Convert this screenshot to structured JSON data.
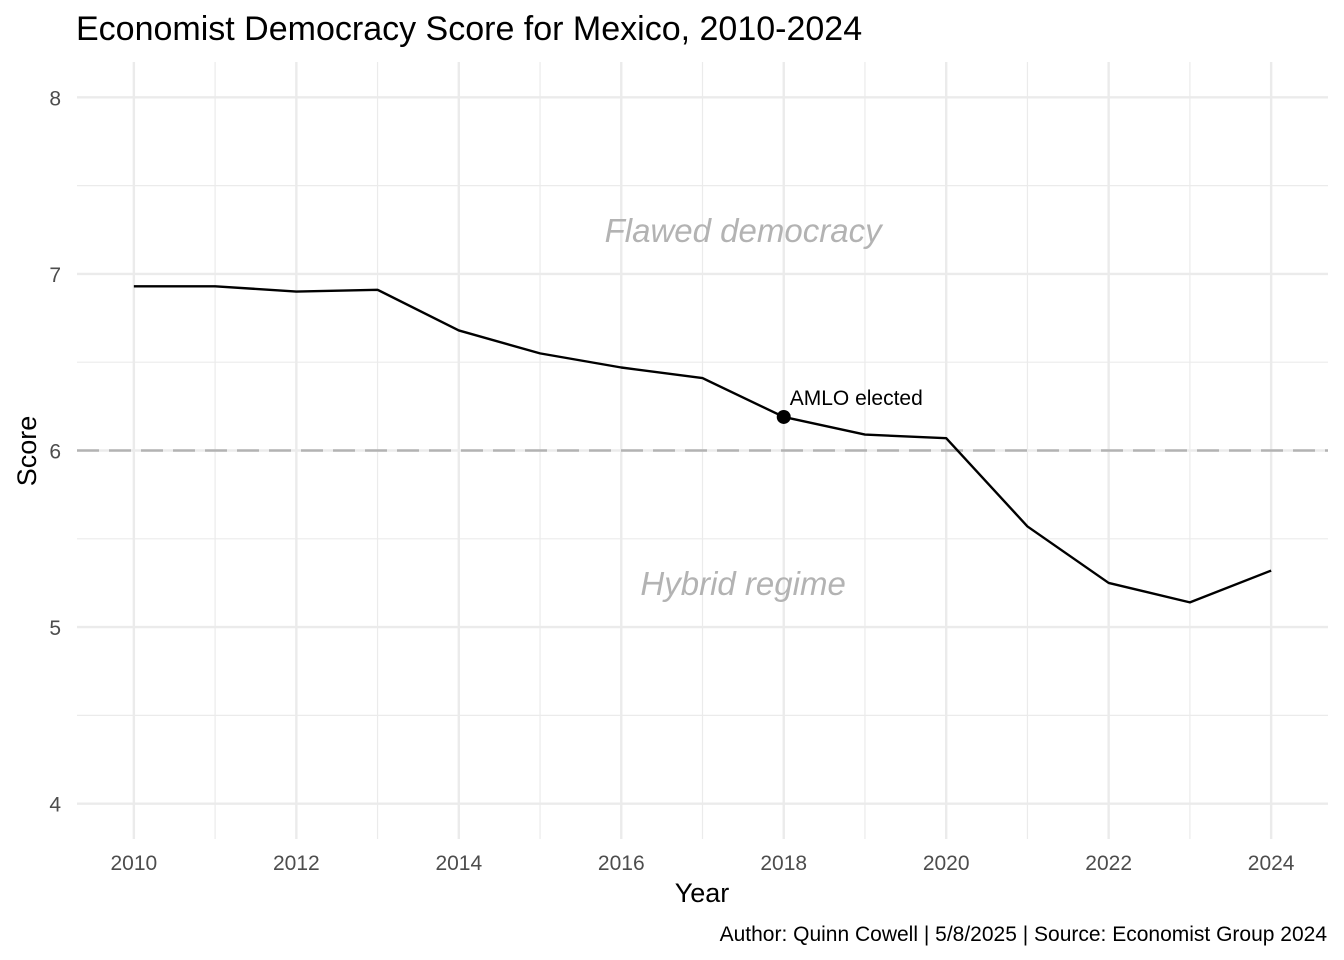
{
  "chart_data": {
    "type": "line",
    "title": "Economist Democracy Score for Mexico, 2010-2024",
    "xlabel": "Year",
    "ylabel": "Score",
    "caption": "Author: Quinn Cowell | 5/8/2025 | Source: Economist Group 2024",
    "xlim": [
      2009.3,
      2024.7
    ],
    "ylim": [
      3.8,
      8.2
    ],
    "x_ticks": [
      2010,
      2012,
      2014,
      2016,
      2018,
      2020,
      2022,
      2024
    ],
    "x_tick_labels": [
      "2010",
      "2012",
      "2014",
      "2016",
      "2018",
      "2020",
      "2022",
      "2024"
    ],
    "y_ticks": [
      4,
      5,
      6,
      7,
      8
    ],
    "y_tick_labels": [
      "4",
      "5",
      "6",
      "7",
      "8"
    ],
    "grid": true,
    "series": [
      {
        "x": [
          2010,
          2011,
          2012,
          2013,
          2014,
          2015,
          2016,
          2017,
          2018,
          2019,
          2020,
          2021,
          2022,
          2023,
          2024
        ],
        "y": [
          6.93,
          6.93,
          6.9,
          6.91,
          6.68,
          6.55,
          6.47,
          6.41,
          6.19,
          6.09,
          6.07,
          5.57,
          5.25,
          5.14,
          5.32
        ],
        "color": "#000000"
      }
    ],
    "reference_line": {
      "y": 6,
      "style": "dashed",
      "color": "#b3b3b3"
    },
    "region_labels": [
      {
        "text": "Flawed democracy",
        "x": 2017.5,
        "y": 7.25
      },
      {
        "text": "Hybrid regime",
        "x": 2017.5,
        "y": 5.25
      }
    ],
    "highlight_point": {
      "x": 2018,
      "y": 6.19,
      "label": "AMLO elected"
    }
  }
}
